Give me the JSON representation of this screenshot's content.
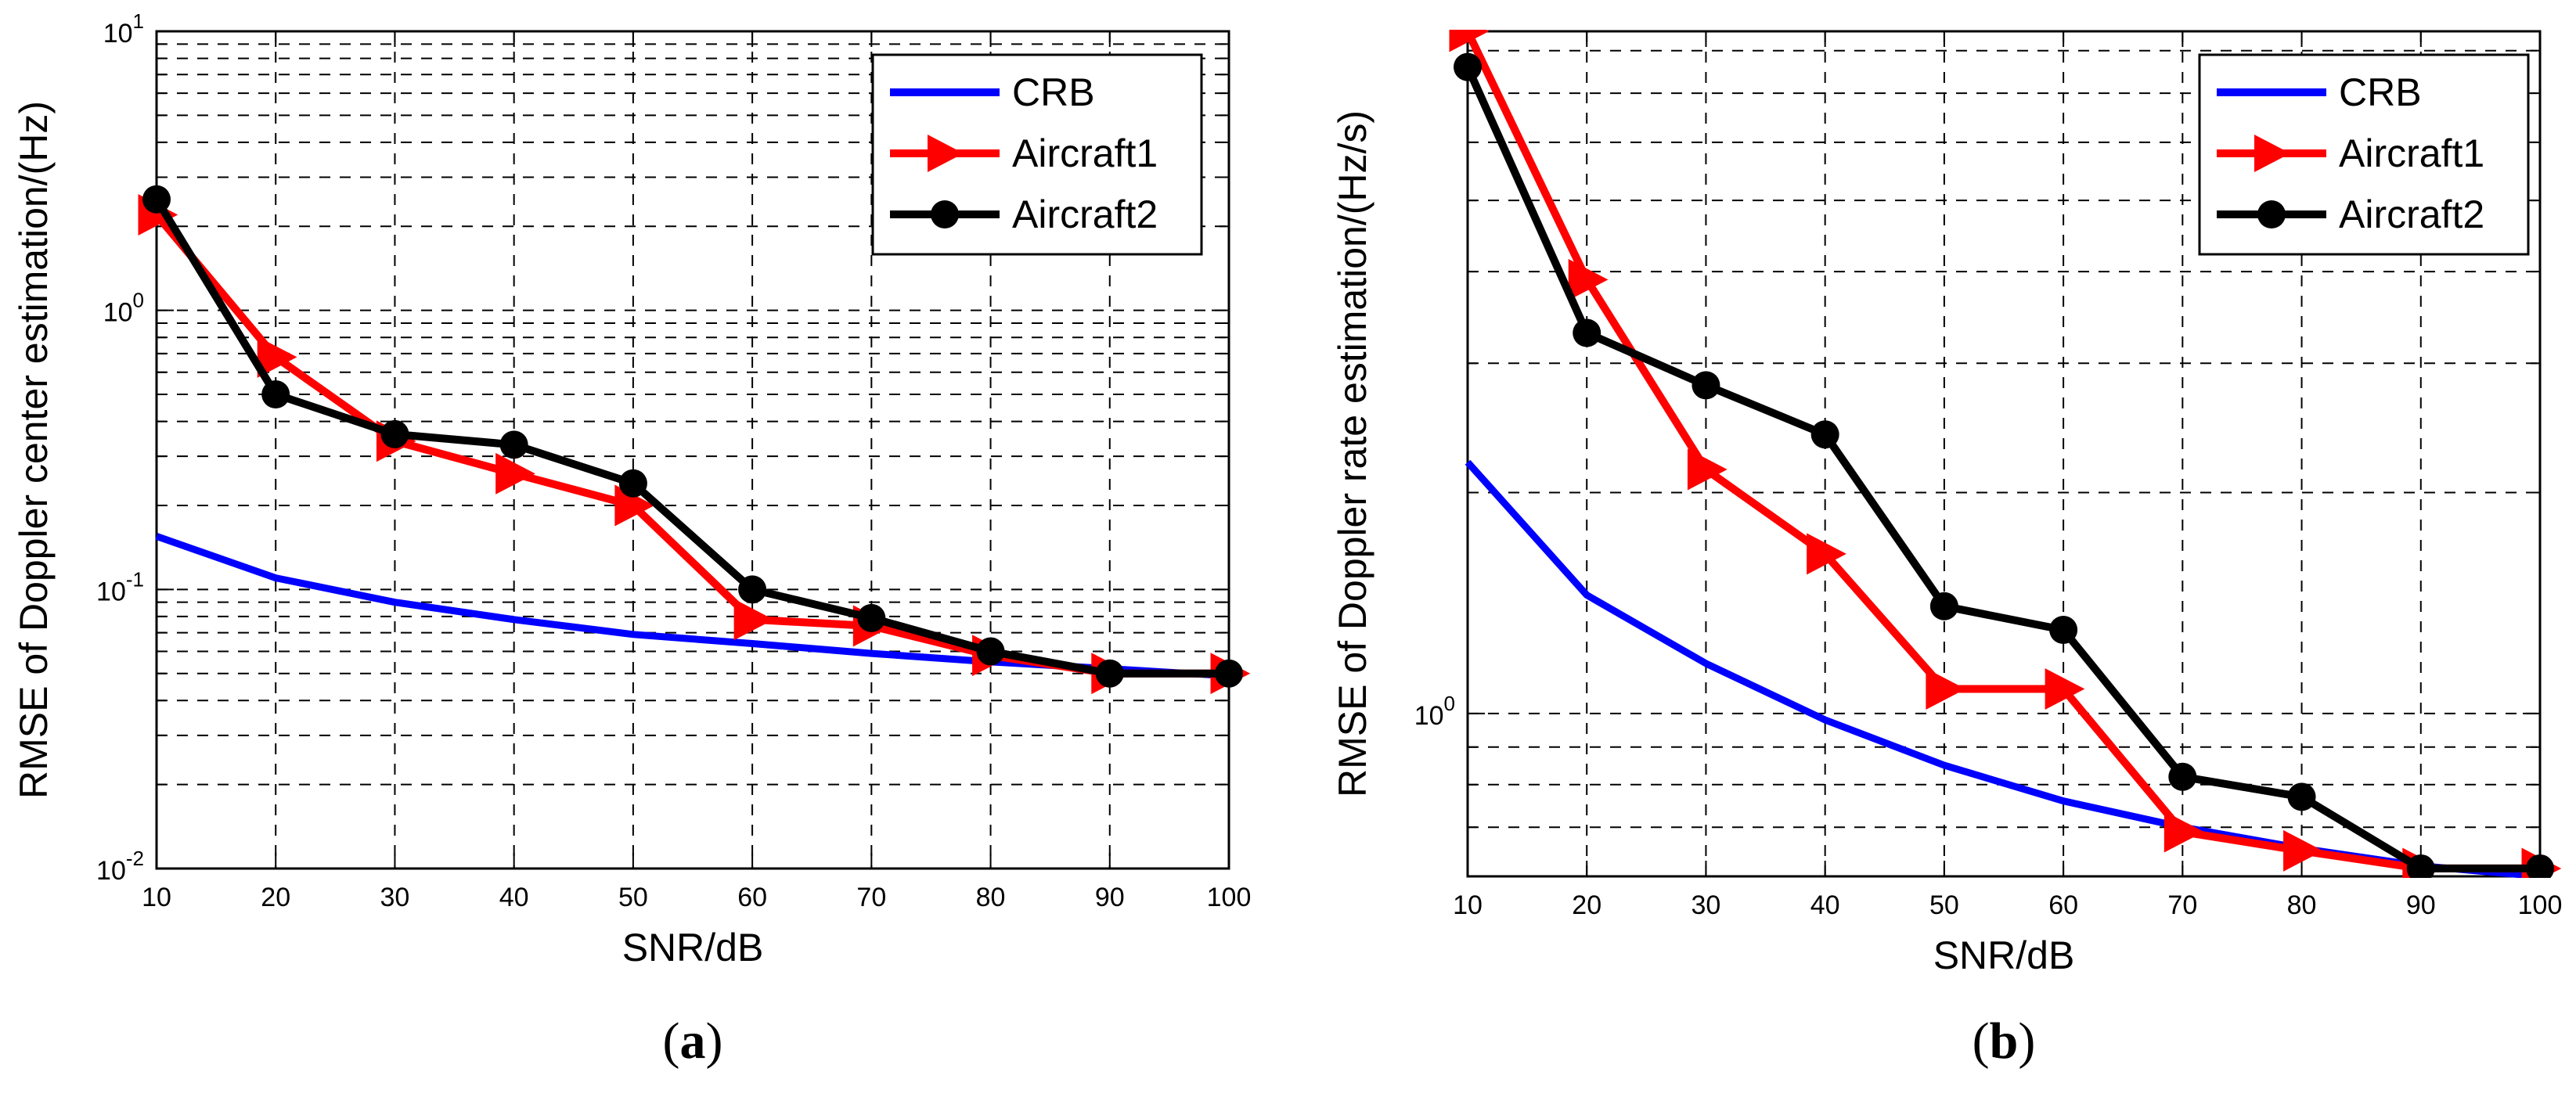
{
  "chart_data": [
    {
      "type": "line",
      "yscale": "log",
      "xlabel": "SNR/dB",
      "ylabel": "RMSE of Doppler center estimation/(Hz)",
      "xlim": [
        10,
        100
      ],
      "ylim": [
        0.01,
        10
      ],
      "grid": true,
      "legend_position": "top-right",
      "x_ticks": [
        "10",
        "20",
        "30",
        "40",
        "50",
        "60",
        "70",
        "80",
        "90",
        "100"
      ],
      "y_ticks": [
        {
          "base": "10",
          "exp": "-2"
        },
        {
          "base": "10",
          "exp": "-1"
        },
        {
          "base": "10",
          "exp": "0"
        },
        {
          "base": "10",
          "exp": "1"
        }
      ],
      "x": [
        10,
        20,
        30,
        40,
        50,
        60,
        70,
        80,
        90,
        100
      ],
      "series": [
        {
          "name": "CRB",
          "color": "#0000ff",
          "marker": "none",
          "values": [
            0.155,
            0.11,
            0.09,
            0.078,
            0.069,
            0.064,
            0.059,
            0.055,
            0.052,
            0.049
          ]
        },
        {
          "name": "Aircraft1",
          "color": "#ff0000",
          "marker": "triangle-right",
          "values": [
            2.2,
            0.68,
            0.34,
            0.26,
            0.2,
            0.078,
            0.074,
            0.058,
            0.05,
            0.05
          ]
        },
        {
          "name": "Aircraft2",
          "color": "#000000",
          "marker": "circle",
          "values": [
            2.5,
            0.5,
            0.36,
            0.33,
            0.24,
            0.1,
            0.079,
            0.06,
            0.05,
            0.05
          ]
        }
      ],
      "caption_label": "a",
      "caption_open": "(",
      "caption_close": ")"
    },
    {
      "type": "line",
      "yscale": "log",
      "xlabel": "SNR/dB",
      "ylabel": "RMSE of Doppler rate estimation/(Hz/s)",
      "xlim": [
        10,
        100
      ],
      "ylim": [
        0.6,
        8.5
      ],
      "grid": true,
      "legend_position": "top-right",
      "x_ticks": [
        "10",
        "20",
        "30",
        "40",
        "50",
        "60",
        "70",
        "80",
        "90",
        "100"
      ],
      "y_ticks": [
        {
          "base": "10",
          "exp": "0"
        }
      ],
      "x": [
        10,
        20,
        30,
        40,
        50,
        60,
        70,
        80,
        90,
        100
      ],
      "series": [
        {
          "name": "CRB",
          "color": "#0000ff",
          "marker": "none",
          "values": [
            2.2,
            1.45,
            1.17,
            0.98,
            0.85,
            0.76,
            0.7,
            0.655,
            0.62,
            0.6
          ]
        },
        {
          "name": "Aircraft1",
          "color": "#ff0000",
          "marker": "triangle-right",
          "values": [
            8.5,
            3.9,
            2.15,
            1.65,
            1.08,
            1.08,
            0.69,
            0.65,
            0.615,
            0.615
          ]
        },
        {
          "name": "Aircraft2",
          "color": "#000000",
          "marker": "circle",
          "values": [
            7.6,
            3.3,
            2.8,
            2.4,
            1.4,
            1.3,
            0.82,
            0.77,
            0.615,
            0.615
          ]
        }
      ],
      "caption_label": "b",
      "caption_open": "(",
      "caption_close": ")"
    }
  ]
}
